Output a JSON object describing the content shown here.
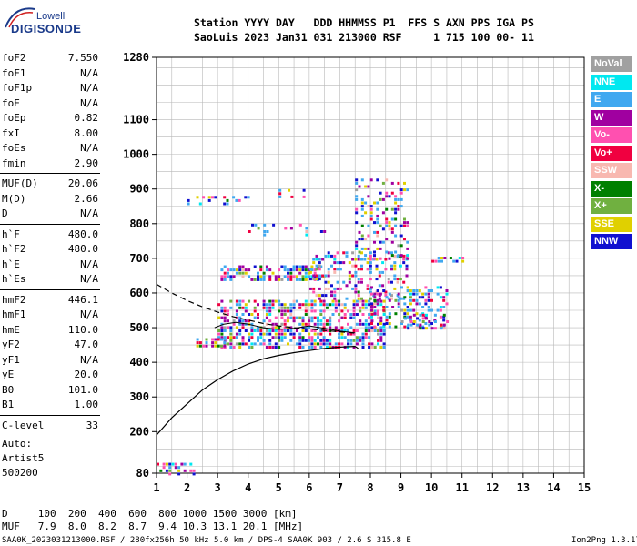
{
  "logo": {
    "top": "Lowell",
    "bottom": "DIGISONDE"
  },
  "header": {
    "line1": "Station YYYY DAY   DDD HHMMSS P1  FFS S AXN PPS IGA PS",
    "line2": "SaoLuis 2023 Jan31 031 213000 RSF     1 715 100 00- 11"
  },
  "params": [
    {
      "k": "foF2",
      "v": "7.550"
    },
    {
      "k": "foF1",
      "v": "N/A"
    },
    {
      "k": "foF1p",
      "v": "N/A"
    },
    {
      "k": "foE",
      "v": "N/A"
    },
    {
      "k": "foEp",
      "v": "0.82"
    },
    {
      "k": "fxI",
      "v": "8.00"
    },
    {
      "k": "foEs",
      "v": "N/A"
    },
    {
      "k": "fmin",
      "v": "2.90"
    },
    {
      "k": "MUF(D)",
      "v": "20.06"
    },
    {
      "k": "M(D)",
      "v": "2.66"
    },
    {
      "k": "D",
      "v": "N/A"
    },
    {
      "k": "h`F",
      "v": "480.0"
    },
    {
      "k": "h`F2",
      "v": "480.0"
    },
    {
      "k": "h`E",
      "v": "N/A"
    },
    {
      "k": "h`Es",
      "v": "N/A"
    },
    {
      "k": "hmF2",
      "v": "446.1"
    },
    {
      "k": "hmF1",
      "v": "N/A"
    },
    {
      "k": "hmE",
      "v": "110.0"
    },
    {
      "k": "yF2",
      "v": "47.0"
    },
    {
      "k": "yF1",
      "v": "N/A"
    },
    {
      "k": "yE",
      "v": "20.0"
    },
    {
      "k": "B0",
      "v": "101.0"
    },
    {
      "k": "B1",
      "v": "1.00"
    },
    {
      "k": "C-level",
      "v": "33"
    }
  ],
  "auto": {
    "l1": "Auto:",
    "l2": "Artist5",
    "l3": "500200"
  },
  "legend": [
    {
      "label": "NoVal",
      "color": "#a0a0a0"
    },
    {
      "label": "NNE",
      "color": "#00e8f0"
    },
    {
      "label": "E",
      "color": "#40a8f0"
    },
    {
      "label": "W",
      "color": "#a000a0"
    },
    {
      "label": "Vo-",
      "color": "#ff50b0"
    },
    {
      "label": "Vo+",
      "color": "#f00040"
    },
    {
      "label": "SSW",
      "color": "#f8b8b0"
    },
    {
      "label": "X-",
      "color": "#008000"
    },
    {
      "label": "X+",
      "color": "#70b040"
    },
    {
      "label": "SSE",
      "color": "#e0d000"
    },
    {
      "label": "NNW",
      "color": "#1010d0"
    }
  ],
  "footer": {
    "d_row": "D     100  200  400  600  800 1000 1500 3000 [km]",
    "muf_row": "MUF   7.9  8.0  8.2  8.7  9.4 10.3 13.1 20.1 [MHz]",
    "info": "SAA0K_2023031213000.RSF / 280fx256h 50 kHz 5.0 km / DPS-4 SAA0K 903 / 2.6 S 315.8 E",
    "version": "Ion2Png 1.3.17"
  },
  "chart_data": {
    "type": "scatter",
    "xlim": [
      1,
      15
    ],
    "ylim": [
      80,
      1280
    ],
    "x_ticks": [
      1,
      2,
      3,
      4,
      5,
      6,
      7,
      8,
      9,
      10,
      11,
      12,
      13,
      14,
      15
    ],
    "y_ticks": [
      80,
      200,
      300,
      400,
      500,
      600,
      700,
      800,
      900,
      1000,
      1100,
      1280
    ],
    "grid": true,
    "legend_position": "right",
    "profile_curve": [
      [
        1.0,
        190
      ],
      [
        1.5,
        240
      ],
      [
        2.0,
        280
      ],
      [
        2.5,
        320
      ],
      [
        3.0,
        350
      ],
      [
        3.5,
        375
      ],
      [
        4.0,
        395
      ],
      [
        4.5,
        410
      ],
      [
        5.0,
        420
      ],
      [
        5.5,
        428
      ],
      [
        6.0,
        434
      ],
      [
        6.5,
        440
      ],
      [
        7.0,
        444
      ],
      [
        7.5,
        446.1
      ],
      [
        7.6,
        440
      ]
    ],
    "dashed_curve": [
      [
        1.0,
        625
      ],
      [
        1.5,
        600
      ],
      [
        2.0,
        578
      ],
      [
        2.5,
        560
      ],
      [
        3.0,
        545
      ],
      [
        3.5,
        532
      ],
      [
        4.0,
        522
      ],
      [
        4.5,
        512
      ],
      [
        5.0,
        505
      ],
      [
        5.5,
        500
      ],
      [
        6.0,
        496
      ],
      [
        6.5,
        492
      ],
      [
        7.0,
        488
      ],
      [
        7.5,
        484
      ]
    ],
    "trace_curve": [
      [
        2.9,
        500
      ],
      [
        3.2,
        510
      ],
      [
        3.6,
        515
      ],
      [
        4.0,
        510
      ],
      [
        4.5,
        500
      ],
      [
        5.0,
        495
      ],
      [
        5.5,
        498
      ],
      [
        6.0,
        505
      ],
      [
        6.5,
        498
      ],
      [
        7.0,
        490
      ],
      [
        7.5,
        485
      ]
    ],
    "echo_regions": [
      {
        "x0": 3.0,
        "x1": 8.5,
        "y0": 445,
        "y1": 580,
        "density": 0.55
      },
      {
        "x0": 3.0,
        "x1": 6.5,
        "y0": 640,
        "y1": 680,
        "density": 0.6
      },
      {
        "x0": 6.0,
        "x1": 9.2,
        "y0": 580,
        "y1": 720,
        "density": 0.35
      },
      {
        "x0": 7.5,
        "x1": 9.2,
        "y0": 700,
        "y1": 930,
        "density": 0.3
      },
      {
        "x0": 8.0,
        "x1": 10.5,
        "y0": 500,
        "y1": 620,
        "density": 0.35
      },
      {
        "x0": 9.0,
        "x1": 10.5,
        "y0": 500,
        "y1": 540,
        "density": 0.35
      },
      {
        "x0": 4.0,
        "x1": 6.5,
        "y0": 770,
        "y1": 800,
        "density": 0.15
      },
      {
        "x0": 2.0,
        "x1": 4.5,
        "y0": 860,
        "y1": 880,
        "density": 0.25
      },
      {
        "x0": 4.8,
        "x1": 5.8,
        "y0": 880,
        "y1": 900,
        "density": 0.2
      },
      {
        "x0": 1.0,
        "x1": 2.2,
        "y0": 80,
        "y1": 110,
        "density": 0.35
      },
      {
        "x0": 10.0,
        "x1": 11.0,
        "y0": 693,
        "y1": 705,
        "density": 0.5
      },
      {
        "x0": 2.3,
        "x1": 3.2,
        "y0": 445,
        "y1": 470,
        "density": 0.6
      }
    ]
  }
}
